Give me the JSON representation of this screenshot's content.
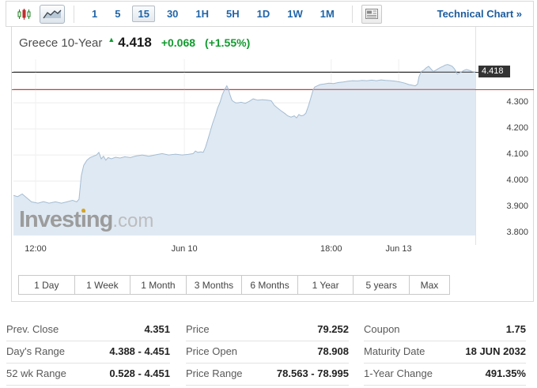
{
  "toolbar": {
    "chart_type": [
      {
        "icon": "candlestick-chart-icon",
        "selected": false
      },
      {
        "icon": "line-area-chart-icon",
        "selected": true
      }
    ],
    "intervals": [
      {
        "label": "1",
        "selected": false
      },
      {
        "label": "5",
        "selected": false
      },
      {
        "label": "15",
        "selected": true
      },
      {
        "label": "30",
        "selected": false
      },
      {
        "label": "1H",
        "selected": false
      },
      {
        "label": "5H",
        "selected": false
      },
      {
        "label": "1D",
        "selected": false
      },
      {
        "label": "1W",
        "selected": false
      },
      {
        "label": "1M",
        "selected": false
      }
    ],
    "news_icon": "news-panel-icon",
    "technical_chart_label": "Technical Chart »"
  },
  "header": {
    "instrument": "Greece 10-Year",
    "direction": "up",
    "last_price": "4.418",
    "change": "+0.068",
    "change_percent": "(+1.55%)"
  },
  "chart_data": {
    "type": "area",
    "title": "Greece 10-Year",
    "interval": "15",
    "ylim": [
      3.791,
      4.467
    ],
    "last_price": 4.418,
    "prev_close": 4.351,
    "price_tag": "4.418",
    "y_ticks": [
      {
        "value": 4.3,
        "label": "4.300"
      },
      {
        "value": 4.2,
        "label": "4.200"
      },
      {
        "value": 4.1,
        "label": "4.100"
      },
      {
        "value": 4.0,
        "label": "4.000"
      },
      {
        "value": 3.9,
        "label": "3.900"
      },
      {
        "value": 3.8,
        "label": "3.800"
      }
    ],
    "x_ticks": [
      {
        "pos": 0.048,
        "label": "12:00"
      },
      {
        "pos": 0.37,
        "label": "Jun 10"
      },
      {
        "pos": 0.688,
        "label": "18:00"
      },
      {
        "pos": 0.834,
        "label": "Jun 13"
      }
    ],
    "watermark": {
      "bold": "Investing",
      "light": ".com"
    },
    "colors": {
      "fill": "#dfe9f3",
      "line": "#a4bcd2",
      "prev_close_line": "#c64040",
      "last_price_line": "#2b2b2b",
      "grid_h": "#ececec",
      "grid_v": "#f0f0f0",
      "up_green": "#119a2e",
      "accent_blue": "#2065a8",
      "tag_bg": "#333333"
    },
    "series": [
      [
        0.0,
        3.945
      ],
      [
        0.009,
        3.94
      ],
      [
        0.019,
        3.95
      ],
      [
        0.027,
        3.938
      ],
      [
        0.039,
        3.92
      ],
      [
        0.053,
        3.915
      ],
      [
        0.065,
        3.921
      ],
      [
        0.077,
        3.915
      ],
      [
        0.091,
        3.92
      ],
      [
        0.104,
        3.915
      ],
      [
        0.116,
        3.92
      ],
      [
        0.128,
        3.926
      ],
      [
        0.137,
        3.92
      ],
      [
        0.142,
        3.93
      ],
      [
        0.147,
        4.02
      ],
      [
        0.152,
        4.06
      ],
      [
        0.159,
        4.08
      ],
      [
        0.166,
        4.09
      ],
      [
        0.173,
        4.095
      ],
      [
        0.18,
        4.1
      ],
      [
        0.185,
        4.11
      ],
      [
        0.19,
        4.085
      ],
      [
        0.195,
        4.095
      ],
      [
        0.2,
        4.08
      ],
      [
        0.205,
        4.09
      ],
      [
        0.212,
        4.085
      ],
      [
        0.221,
        4.091
      ],
      [
        0.231,
        4.088
      ],
      [
        0.241,
        4.093
      ],
      [
        0.253,
        4.09
      ],
      [
        0.265,
        4.096
      ],
      [
        0.279,
        4.1
      ],
      [
        0.293,
        4.095
      ],
      [
        0.306,
        4.1
      ],
      [
        0.322,
        4.105
      ],
      [
        0.336,
        4.1
      ],
      [
        0.351,
        4.103
      ],
      [
        0.365,
        4.1
      ],
      [
        0.378,
        4.102
      ],
      [
        0.389,
        4.105
      ],
      [
        0.394,
        4.115
      ],
      [
        0.399,
        4.11
      ],
      [
        0.406,
        4.112
      ],
      [
        0.411,
        4.11
      ],
      [
        0.416,
        4.13
      ],
      [
        0.421,
        4.16
      ],
      [
        0.426,
        4.19
      ],
      [
        0.431,
        4.22
      ],
      [
        0.437,
        4.25
      ],
      [
        0.442,
        4.28
      ],
      [
        0.447,
        4.3
      ],
      [
        0.452,
        4.33
      ],
      [
        0.457,
        4.35
      ],
      [
        0.462,
        4.365
      ],
      [
        0.466,
        4.35
      ],
      [
        0.469,
        4.33
      ],
      [
        0.473,
        4.31
      ],
      [
        0.476,
        4.305
      ],
      [
        0.481,
        4.3
      ],
      [
        0.486,
        4.3
      ],
      [
        0.493,
        4.302
      ],
      [
        0.502,
        4.298
      ],
      [
        0.51,
        4.305
      ],
      [
        0.519,
        4.315
      ],
      [
        0.529,
        4.31
      ],
      [
        0.539,
        4.312
      ],
      [
        0.55,
        4.31
      ],
      [
        0.558,
        4.308
      ],
      [
        0.565,
        4.29
      ],
      [
        0.572,
        4.28
      ],
      [
        0.579,
        4.27
      ],
      [
        0.587,
        4.26
      ],
      [
        0.594,
        4.25
      ],
      [
        0.601,
        4.245
      ],
      [
        0.608,
        4.25
      ],
      [
        0.613,
        4.242
      ],
      [
        0.618,
        4.255
      ],
      [
        0.623,
        4.25
      ],
      [
        0.628,
        4.252
      ],
      [
        0.633,
        4.26
      ],
      [
        0.639,
        4.29
      ],
      [
        0.644,
        4.32
      ],
      [
        0.649,
        4.35
      ],
      [
        0.652,
        4.36
      ],
      [
        0.658,
        4.365
      ],
      [
        0.664,
        4.37
      ],
      [
        0.673,
        4.372
      ],
      [
        0.683,
        4.375
      ],
      [
        0.693,
        4.374
      ],
      [
        0.704,
        4.378
      ],
      [
        0.714,
        4.38
      ],
      [
        0.724,
        4.383
      ],
      [
        0.734,
        4.385
      ],
      [
        0.745,
        4.384
      ],
      [
        0.755,
        4.386
      ],
      [
        0.765,
        4.385
      ],
      [
        0.776,
        4.387
      ],
      [
        0.786,
        4.385
      ],
      [
        0.796,
        4.388
      ],
      [
        0.806,
        4.386
      ],
      [
        0.817,
        4.385
      ],
      [
        0.827,
        4.383
      ],
      [
        0.837,
        4.38
      ],
      [
        0.848,
        4.375
      ],
      [
        0.856,
        4.37
      ],
      [
        0.863,
        4.368
      ],
      [
        0.87,
        4.365
      ],
      [
        0.875,
        4.372
      ],
      [
        0.878,
        4.4
      ],
      [
        0.883,
        4.42
      ],
      [
        0.889,
        4.426
      ],
      [
        0.894,
        4.435
      ],
      [
        0.899,
        4.44
      ],
      [
        0.904,
        4.43
      ],
      [
        0.909,
        4.42
      ],
      [
        0.914,
        4.425
      ],
      [
        0.919,
        4.43
      ],
      [
        0.925,
        4.436
      ],
      [
        0.93,
        4.44
      ],
      [
        0.935,
        4.445
      ],
      [
        0.94,
        4.447
      ],
      [
        0.945,
        4.444
      ],
      [
        0.95,
        4.44
      ],
      [
        0.955,
        4.43
      ],
      [
        0.961,
        4.41
      ],
      [
        0.966,
        4.415
      ],
      [
        0.971,
        4.42
      ],
      [
        0.976,
        4.425
      ],
      [
        0.981,
        4.428
      ],
      [
        0.988,
        4.424
      ],
      [
        0.993,
        4.42
      ],
      [
        1.0,
        4.418
      ]
    ]
  },
  "range_buttons": [
    "1 Day",
    "1 Week",
    "1 Month",
    "3 Months",
    "6 Months",
    "1 Year",
    "5 years",
    "Max"
  ],
  "stats": {
    "columns": [
      {
        "rows": [
          {
            "label": "Prev. Close",
            "value": "4.351"
          },
          {
            "label": "Day's Range",
            "value": "4.388 - 4.451"
          },
          {
            "label": "52 wk Range",
            "value": "0.528 - 4.451"
          }
        ]
      },
      {
        "rows": [
          {
            "label": "Price",
            "value": "79.252"
          },
          {
            "label": "Price Open",
            "value": "78.908"
          },
          {
            "label": "Price Range",
            "value": "78.563 - 78.995"
          }
        ]
      },
      {
        "rows": [
          {
            "label": "Coupon",
            "value": "1.75"
          },
          {
            "label": "Maturity Date",
            "value": "18 JUN 2032"
          },
          {
            "label": "1-Year Change",
            "value": "491.35%"
          }
        ]
      }
    ]
  }
}
